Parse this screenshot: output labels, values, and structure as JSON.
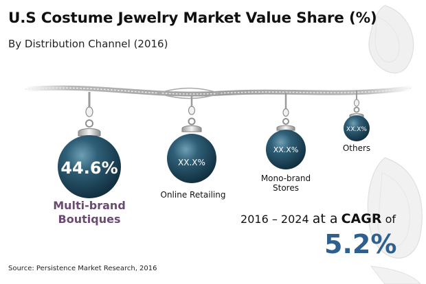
{
  "title": "U.S Costume Jewelry Market Value Share (%)",
  "subtitle": "By Distribution Channel (2016)",
  "source": "Source: Persistence Market Research, 2016",
  "cagr": {
    "years": "2016 – 2024",
    "prefix": "at a",
    "keyword": "CAGR",
    "suffix": "of",
    "value": "5.2%"
  },
  "colors": {
    "pearl": "#2f5f77",
    "pearl_dark": "#0f2c3c",
    "highlight_label": "#6b4a73",
    "cagr_value": "#2e5f8f"
  },
  "chart_data": {
    "type": "pie",
    "title": "U.S Costume Jewelry Market Value Share (%)",
    "subtitle": "By Distribution Channel (2016)",
    "categories": [
      "Multi-brand Boutiques",
      "Online Retailing",
      "Mono-brand Stores",
      "Others"
    ],
    "values": [
      44.6,
      null,
      null,
      null
    ],
    "value_labels": [
      "44.6%",
      "XX.X%",
      "XX.X%",
      "XX.X%"
    ],
    "label_lines": [
      [
        "Multi-brand",
        "Boutiques"
      ],
      [
        "Online Retailing"
      ],
      [
        "Mono-brand",
        "Stores"
      ],
      [
        "Others"
      ]
    ]
  }
}
